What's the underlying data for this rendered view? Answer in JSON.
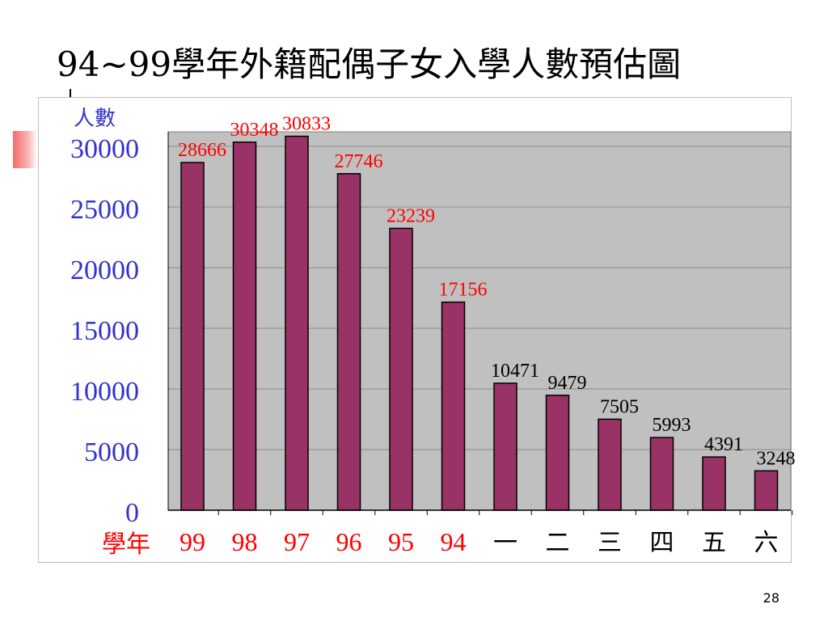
{
  "slide": {
    "title": "94~99學年外籍配偶子女入學人數預估圖",
    "page_number": "28"
  },
  "chart_data": {
    "type": "bar",
    "ylabel": "人數",
    "xlabel": "學年",
    "categories": [
      "99",
      "98",
      "97",
      "96",
      "95",
      "94",
      "一",
      "二",
      "三",
      "四",
      "五",
      "六"
    ],
    "values": [
      28666,
      30348,
      30833,
      27746,
      23239,
      17156,
      10471,
      9479,
      7505,
      5993,
      4391,
      3248
    ],
    "ylim": [
      0,
      30000
    ],
    "yticks": [
      0,
      5000,
      10000,
      15000,
      20000,
      25000,
      30000
    ],
    "grid": true,
    "colors": {
      "bar": "#993366",
      "plot_area": "#c0c0c0",
      "axis_text": "#3333cc",
      "accent_text": "#ff0000",
      "label_text": "#000000"
    },
    "red_label_count": 6
  }
}
